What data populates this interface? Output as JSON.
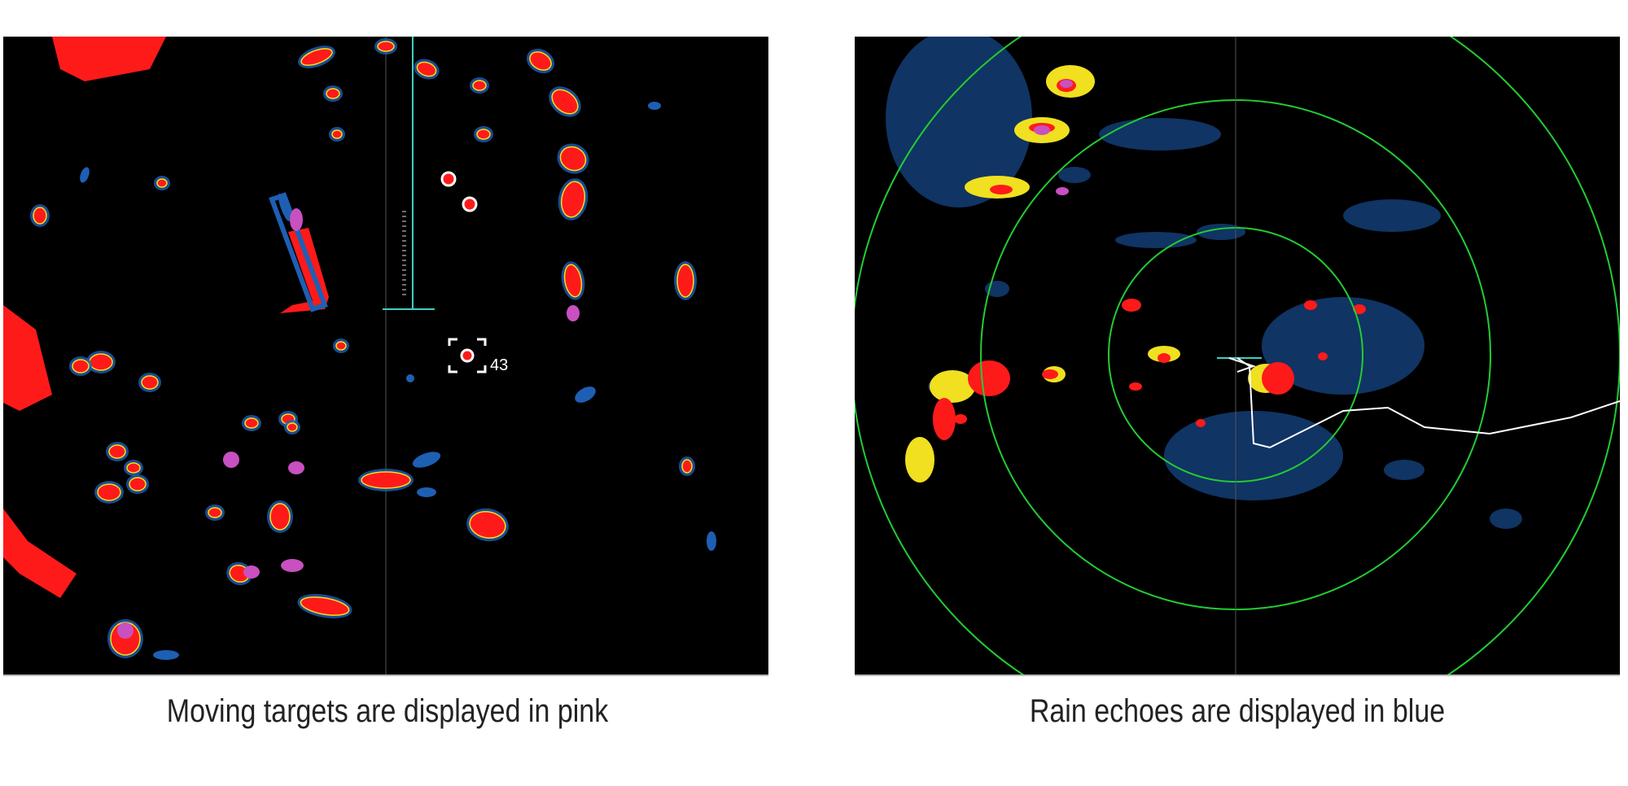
{
  "left_panel": {
    "caption": "Moving targets are displayed in pink",
    "target_label": "43"
  },
  "right_panel": {
    "caption": "Rain echoes are displayed in blue"
  },
  "colors": {
    "background": "#000000",
    "land_echo": "#ff1a1a",
    "rain_echo": "#1e5fb4",
    "moving_target": "#c850c0",
    "edge": "#f0e020",
    "range_ring": "#22cc33",
    "heading_line": "#40d0c0",
    "track": "#ffffff"
  }
}
